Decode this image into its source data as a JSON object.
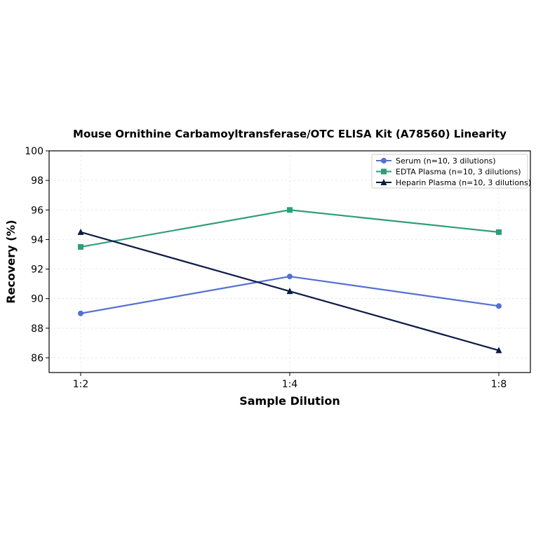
{
  "chart_data": {
    "type": "line",
    "title": "Mouse Ornithine Carbamoyltransferase/OTC ELISA Kit (A78560) Linearity",
    "xlabel": "Sample Dilution",
    "ylabel": "Recovery (%)",
    "categories": [
      "1:2",
      "1:4",
      "1:8"
    ],
    "ylim": [
      85,
      100
    ],
    "yticks": [
      86,
      88,
      90,
      92,
      94,
      96,
      98,
      100
    ],
    "grid": true,
    "legend_position": "top-right",
    "series": [
      {
        "name": "Serum (n=10, 3 dilutions)",
        "values": [
          89.0,
          91.5,
          89.5
        ],
        "color": "#5470d0",
        "marker": "circle"
      },
      {
        "name": "EDTA Plasma (n=10, 3 dilutions)",
        "values": [
          93.5,
          96.0,
          94.5
        ],
        "color": "#2e9e78",
        "marker": "square"
      },
      {
        "name": "Heparin Plasma (n=10, 3 dilutions)",
        "values": [
          94.5,
          90.5,
          86.5
        ],
        "color": "#0c1a45",
        "marker": "triangle"
      }
    ]
  }
}
